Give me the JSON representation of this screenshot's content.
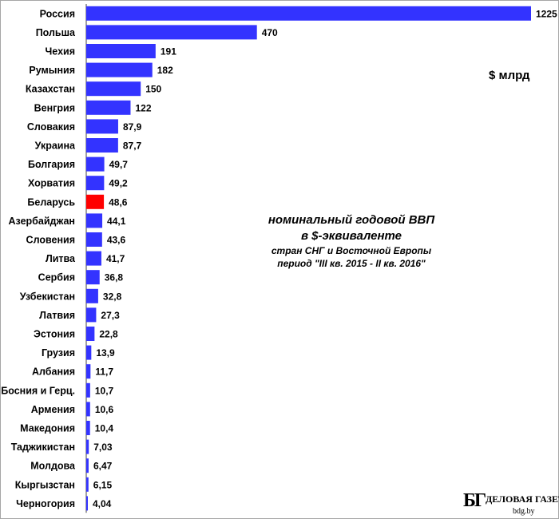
{
  "chart_data": {
    "type": "bar",
    "orientation": "horizontal",
    "categories": [
      "Россия",
      "Польша",
      "Чехия",
      "Румыния",
      "Казахстан",
      "Венгрия",
      "Словакия",
      "Украина",
      "Болгария",
      "Хорватия",
      "Беларусь",
      "Азербайджан",
      "Словения",
      "Литва",
      "Сербия",
      "Узбекистан",
      "Латвия",
      "Эстония",
      "Грузия",
      "Албания",
      "Босния и Герц.",
      "Армения",
      "Македония",
      "Таджикистан",
      "Молдова",
      "Кыргызстан",
      "Черногория"
    ],
    "values": [
      1225,
      470,
      191,
      182,
      150,
      122,
      87.9,
      87.7,
      49.7,
      49.2,
      48.6,
      44.1,
      43.6,
      41.7,
      36.8,
      32.8,
      27.3,
      22.8,
      13.9,
      11.7,
      10.7,
      10.6,
      10.4,
      7.03,
      6.47,
      6.15,
      4.04
    ],
    "value_labels": [
      "1225",
      "470",
      "191",
      "182",
      "150",
      "122",
      "87,9",
      "87,7",
      "49,7",
      "49,2",
      "48,6",
      "44,1",
      "43,6",
      "41,7",
      "36,8",
      "32,8",
      "27,3",
      "22,8",
      "13,9",
      "11,7",
      "10,7",
      "10,6",
      "10,4",
      "7,03",
      "6,47",
      "6,15",
      "4,04"
    ],
    "highlight_index": 10,
    "colors": {
      "bar": "#3333ff",
      "highlight": "#ff0000"
    },
    "xlim": [
      0,
      1225
    ],
    "grid": false,
    "unit": "$ млрд",
    "title_lines": [
      "номинальный годовой ВВП",
      "в $-эквиваленте"
    ],
    "subtitle_lines": [
      "стран СНГ и Восточной Европы",
      "период \"III кв. 2015 - II кв. 2016\""
    ]
  },
  "logo": {
    "mark": "БГ",
    "name": "ДЕЛОВАЯ ГАЗЕТА",
    "site": "bdg.by"
  }
}
